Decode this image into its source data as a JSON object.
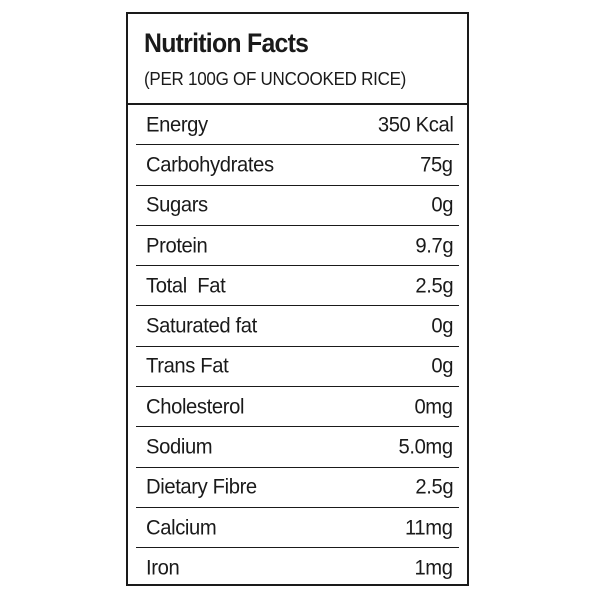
{
  "label": {
    "title": "Nutrition Facts",
    "subtitle": "(PER 100G OF UNCOOKED RICE)",
    "rows": [
      {
        "name": "Energy",
        "value": "350 Kcal"
      },
      {
        "name": "Carbohydrates",
        "value": "75g"
      },
      {
        "name": "Sugars",
        "value": "0g"
      },
      {
        "name": "Protein",
        "value": "9.7g"
      },
      {
        "name": "Total  Fat",
        "value": "2.5g"
      },
      {
        "name": "Saturated fat",
        "value": "0g"
      },
      {
        "name": "Trans Fat",
        "value": "0g"
      },
      {
        "name": "Cholesterol",
        "value": "0mg"
      },
      {
        "name": "Sodium",
        "value": "5.0mg"
      },
      {
        "name": "Dietary Fibre",
        "value": "2.5g"
      },
      {
        "name": "Calcium",
        "value": "11mg"
      },
      {
        "name": "Iron",
        "value": "1mg"
      }
    ]
  }
}
